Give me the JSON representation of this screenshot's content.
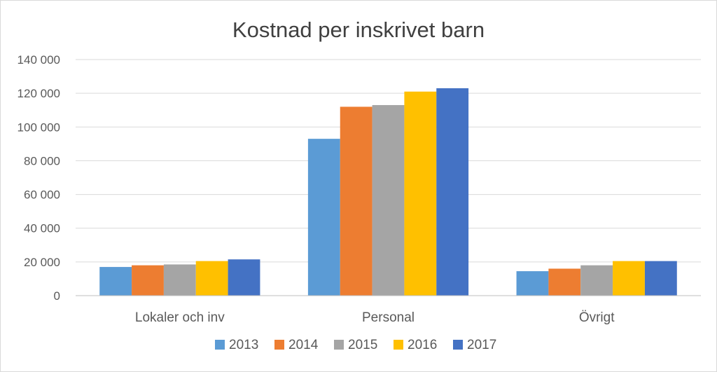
{
  "chart_data": {
    "type": "bar",
    "title": "Kostnad per inskrivet barn",
    "xlabel": "",
    "ylabel": "",
    "categories": [
      "Lokaler och inv",
      "Personal",
      "Övrigt"
    ],
    "series": [
      {
        "name": "2013",
        "color": "#5b9bd5",
        "values": [
          17000,
          93000,
          14500
        ]
      },
      {
        "name": "2014",
        "color": "#ed7d31",
        "values": [
          18000,
          112000,
          16000
        ]
      },
      {
        "name": "2015",
        "color": "#a5a5a5",
        "values": [
          18500,
          113000,
          18000
        ]
      },
      {
        "name": "2016",
        "color": "#ffc000",
        "values": [
          20500,
          121000,
          20500
        ]
      },
      {
        "name": "2017",
        "color": "#4472c4",
        "values": [
          21500,
          123000,
          20500
        ]
      }
    ],
    "ylim": [
      0,
      140000
    ],
    "yticks": [
      0,
      20000,
      40000,
      60000,
      80000,
      100000,
      120000,
      140000
    ],
    "ytick_labels": [
      "0",
      "20 000",
      "40 000",
      "60 000",
      "80 000",
      "100 000",
      "120 000",
      "140 000"
    ],
    "grid": true,
    "legend_position": "bottom"
  }
}
